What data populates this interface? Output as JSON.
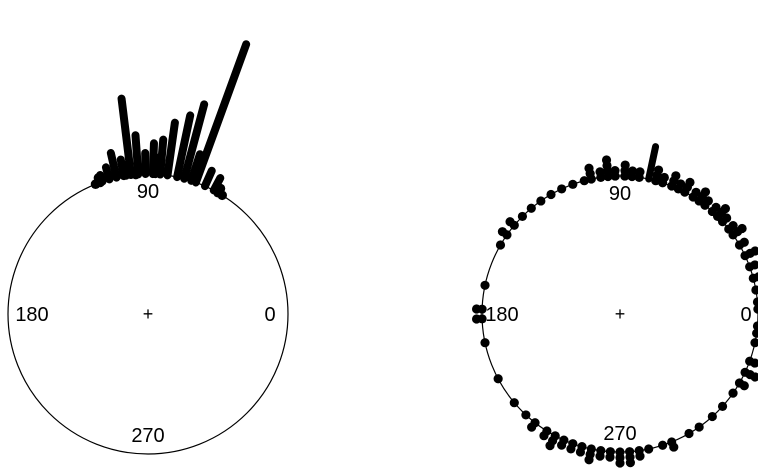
{
  "colors": {
    "ink": "#000000",
    "background": "#ffffff"
  },
  "chart_data": [
    {
      "type": "circular-histogram",
      "direction": "counter-clockwise",
      "zero_at": "right",
      "center_marker": "+",
      "angle_labels": [
        {
          "angle": 0,
          "text": "0"
        },
        {
          "angle": 90,
          "text": "90"
        },
        {
          "angle": 180,
          "text": "180"
        },
        {
          "angle": 270,
          "text": "270"
        }
      ],
      "stack_unit": 0.035,
      "bars": [
        {
          "angle": 70,
          "length": 1.05
        },
        {
          "angle": 75,
          "length": 0.55
        },
        {
          "angle": 78,
          "length": 0.45
        },
        {
          "angle": 82,
          "length": 0.38
        },
        {
          "angle": 85,
          "length": 0.25
        },
        {
          "angle": 88,
          "length": 0.22
        },
        {
          "angle": 91,
          "length": 0.15
        },
        {
          "angle": 94,
          "length": 0.28
        },
        {
          "angle": 97,
          "length": 0.55
        },
        {
          "angle": 100,
          "length": 0.12
        },
        {
          "angle": 103,
          "length": 0.18
        },
        {
          "angle": 106,
          "length": 0.09
        },
        {
          "angle": 109,
          "length": 0.05
        },
        {
          "angle": 66,
          "length": 0.12
        },
        {
          "angle": 62,
          "length": 0.1
        },
        {
          "angle": 72,
          "length": 0.2
        },
        {
          "angle": 87,
          "length": 0.12
        },
        {
          "angle": 99,
          "length": 0.08
        }
      ],
      "points": [
        {
          "angle": 112,
          "count": 1
        },
        {
          "angle": 110,
          "count": 2
        },
        {
          "angle": 95,
          "count": 1
        },
        {
          "angle": 60,
          "count": 2
        },
        {
          "angle": 58,
          "count": 1
        }
      ]
    },
    {
      "type": "circular-histogram",
      "direction": "counter-clockwise",
      "zero_at": "right",
      "center_marker": "+",
      "angle_labels": [
        {
          "angle": 0,
          "text": "0"
        },
        {
          "angle": 90,
          "text": "90"
        },
        {
          "angle": 180,
          "text": "180"
        },
        {
          "angle": 270,
          "text": "270"
        }
      ],
      "stack_unit": 0.04,
      "bars": [
        {
          "angle": 78,
          "length": 0.24
        }
      ],
      "points": [
        {
          "angle": 5,
          "count": 1
        },
        {
          "angle": 2,
          "count": 1
        },
        {
          "angle": -5,
          "count": 1
        },
        {
          "angle": -8,
          "count": 2
        },
        {
          "angle": -12,
          "count": 1
        },
        {
          "angle": -20,
          "count": 2
        },
        {
          "angle": -25,
          "count": 3
        },
        {
          "angle": -30,
          "count": 2
        },
        {
          "angle": -35,
          "count": 1
        },
        {
          "angle": -42,
          "count": 1
        },
        {
          "angle": -48,
          "count": 1
        },
        {
          "angle": -55,
          "count": 1
        },
        {
          "angle": -60,
          "count": 1
        },
        {
          "angle": -68,
          "count": 2
        },
        {
          "angle": -72,
          "count": 1
        },
        {
          "angle": -78,
          "count": 1
        },
        {
          "angle": -82,
          "count": 2
        },
        {
          "angle": -86,
          "count": 3
        },
        {
          "angle": -90,
          "count": 3
        },
        {
          "angle": -94,
          "count": 2
        },
        {
          "angle": -98,
          "count": 2
        },
        {
          "angle": -102,
          "count": 3
        },
        {
          "angle": -106,
          "count": 2
        },
        {
          "angle": -110,
          "count": 2
        },
        {
          "angle": -114,
          "count": 2
        },
        {
          "angle": -118,
          "count": 3
        },
        {
          "angle": -122,
          "count": 2
        },
        {
          "angle": -128,
          "count": 2
        },
        {
          "angle": -133,
          "count": 1
        },
        {
          "angle": -140,
          "count": 1
        },
        {
          "angle": -152,
          "count": 1
        },
        {
          "angle": -168,
          "count": 1
        },
        {
          "angle": 178,
          "count": 2
        },
        {
          "angle": 182,
          "count": 2
        },
        {
          "angle": 168,
          "count": 1
        },
        {
          "angle": 150,
          "count": 1
        },
        {
          "angle": 145,
          "count": 2
        },
        {
          "angle": 140,
          "count": 2
        },
        {
          "angle": 135,
          "count": 1
        },
        {
          "angle": 130,
          "count": 1
        },
        {
          "angle": 125,
          "count": 1
        },
        {
          "angle": 120,
          "count": 1
        },
        {
          "angle": 115,
          "count": 1
        },
        {
          "angle": 110,
          "count": 1
        },
        {
          "angle": 105,
          "count": 1
        },
        {
          "angle": 102,
          "count": 3
        },
        {
          "angle": 98,
          "count": 2
        },
        {
          "angle": 95,
          "count": 4
        },
        {
          "angle": 92,
          "count": 2
        },
        {
          "angle": 88,
          "count": 3
        },
        {
          "angle": 85,
          "count": 2
        },
        {
          "angle": 82,
          "count": 2
        },
        {
          "angle": 75,
          "count": 3
        },
        {
          "angle": 72,
          "count": 2
        },
        {
          "angle": 68,
          "count": 3
        },
        {
          "angle": 65,
          "count": 2
        },
        {
          "angle": 62,
          "count": 3
        },
        {
          "angle": 58,
          "count": 2
        },
        {
          "angle": 55,
          "count": 3
        },
        {
          "angle": 52,
          "count": 2
        },
        {
          "angle": 48,
          "count": 2
        },
        {
          "angle": 45,
          "count": 3
        },
        {
          "angle": 42,
          "count": 2
        },
        {
          "angle": 38,
          "count": 2
        },
        {
          "angle": 35,
          "count": 3
        },
        {
          "angle": 30,
          "count": 2
        },
        {
          "angle": 25,
          "count": 3
        },
        {
          "angle": 20,
          "count": 2
        },
        {
          "angle": 15,
          "count": 2
        },
        {
          "angle": 10,
          "count": 1
        }
      ]
    }
  ]
}
